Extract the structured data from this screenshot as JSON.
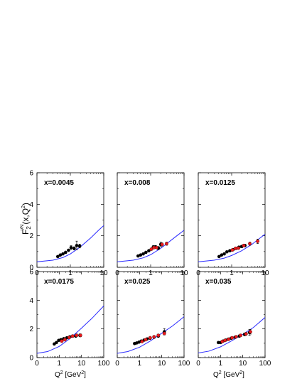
{
  "figure": {
    "ylabel_main": "F",
    "ylabel_sub": "2",
    "ylabel_sup": "νN",
    "ylabel_rest": "(x,Q",
    "ylabel_rest_sup": "2",
    "ylabel_close": ")",
    "xlabel_main": "Q",
    "xlabel_sup": "2",
    "xlabel_unit_open": " [GeV",
    "xlabel_unit_sup": "2",
    "xlabel_unit_close": "]"
  },
  "colors": {
    "curve": "#2a2aff",
    "black_points": "#000000",
    "red_points": "#e8191c"
  },
  "chart_data": [
    {
      "type": "scatter",
      "label": "x=0.0045",
      "ylim": [
        0,
        6
      ],
      "xlim": [
        0,
        10
      ],
      "xscale": "log",
      "xticks": [
        {
          "v": 1,
          "t": "1"
        },
        {
          "v": 10,
          "t": "10"
        }
      ],
      "yticks": [
        {
          "v": 0,
          "t": "0"
        },
        {
          "v": 2,
          "t": "2"
        },
        {
          "v": 4,
          "t": "4"
        },
        {
          "v": 6,
          "t": "6"
        }
      ],
      "curve": [
        [
          0.1,
          0.35
        ],
        [
          0.3,
          0.45
        ],
        [
          0.6,
          0.62
        ],
        [
          1,
          0.85
        ],
        [
          2,
          1.3
        ],
        [
          4,
          1.85
        ],
        [
          7,
          2.35
        ],
        [
          10,
          2.65
        ]
      ],
      "series": [
        {
          "color": "black",
          "points": [
            [
              0.42,
              0.68
            ],
            [
              0.5,
              0.78
            ],
            [
              0.6,
              0.85
            ],
            [
              0.72,
              0.95
            ],
            [
              0.88,
              1.08
            ],
            [
              1.05,
              1.25
            ],
            [
              1.3,
              1.2
            ],
            [
              1.55,
              1.38
            ],
            [
              1.9,
              1.35
            ]
          ],
          "errors": [
            0,
            0,
            0,
            0,
            0,
            0.12,
            0.1,
            0.28,
            0.12
          ]
        }
      ]
    },
    {
      "type": "scatter",
      "label": "x=0.008",
      "ylim": [
        0,
        6
      ],
      "xlim": [
        0,
        10
      ],
      "xscale": "log",
      "xticks": [
        {
          "v": 1,
          "t": "1"
        },
        {
          "v": 10,
          "t": "10"
        }
      ],
      "yticks": [
        {
          "v": 0,
          "t": "0"
        },
        {
          "v": 2,
          "t": "2"
        },
        {
          "v": 4,
          "t": "4"
        },
        {
          "v": 6,
          "t": "6"
        }
      ],
      "curve": [
        [
          0.1,
          0.35
        ],
        [
          0.3,
          0.45
        ],
        [
          0.6,
          0.6
        ],
        [
          1,
          0.8
        ],
        [
          2,
          1.2
        ],
        [
          4,
          1.7
        ],
        [
          7,
          2.1
        ],
        [
          10,
          2.35
        ]
      ],
      "series": [
        {
          "color": "black",
          "points": [
            [
              0.42,
              0.72
            ],
            [
              0.5,
              0.78
            ],
            [
              0.6,
              0.85
            ],
            [
              0.72,
              0.95
            ],
            [
              0.88,
              1.05
            ],
            [
              1.2,
              1.28
            ],
            [
              1.4,
              1.3
            ],
            [
              1.7,
              1.22
            ],
            [
              2.0,
              1.45
            ]
          ],
          "errors": [
            0,
            0,
            0,
            0,
            0,
            0.1,
            0.08,
            0.1,
            0.15
          ]
        },
        {
          "color": "red",
          "points": [
            [
              1.05,
              1.15
            ],
            [
              1.25,
              1.25
            ],
            [
              1.5,
              1.25
            ],
            [
              2.2,
              1.45
            ],
            [
              3.0,
              1.5
            ]
          ],
          "errors": [
            0,
            0,
            0,
            0.1,
            0.1
          ]
        }
      ]
    },
    {
      "type": "scatter",
      "label": "x=0.0125",
      "ylim": [
        0,
        6
      ],
      "xlim": [
        0,
        10
      ],
      "xscale": "log",
      "xticks": [
        {
          "v": 1,
          "t": "1"
        },
        {
          "v": 10,
          "t": "10"
        }
      ],
      "yticks": [
        {
          "v": 0,
          "t": "0"
        },
        {
          "v": 2,
          "t": "2"
        },
        {
          "v": 4,
          "t": "4"
        },
        {
          "v": 6,
          "t": "6"
        }
      ],
      "curve": [
        [
          0.1,
          0.35
        ],
        [
          0.3,
          0.45
        ],
        [
          0.6,
          0.58
        ],
        [
          1,
          0.75
        ],
        [
          2,
          1.05
        ],
        [
          4,
          1.45
        ],
        [
          7,
          1.85
        ],
        [
          10,
          2.1
        ]
      ],
      "series": [
        {
          "color": "black",
          "points": [
            [
              0.42,
              0.68
            ],
            [
              0.5,
              0.78
            ],
            [
              0.6,
              0.85
            ],
            [
              0.72,
              0.98
            ],
            [
              0.88,
              1.05
            ],
            [
              1.1,
              1.12
            ],
            [
              1.35,
              1.2
            ],
            [
              1.65,
              1.28
            ],
            [
              2.0,
              1.32
            ],
            [
              2.5,
              1.38
            ]
          ],
          "errors": [
            0,
            0,
            0,
            0,
            0,
            0,
            0.06,
            0.06,
            0.08,
            0.08
          ]
        },
        {
          "color": "red",
          "points": [
            [
              1.05,
              1.1
            ],
            [
              1.3,
              1.2
            ],
            [
              1.6,
              1.22
            ],
            [
              2.3,
              1.38
            ],
            [
              3.5,
              1.5
            ],
            [
              6.0,
              1.65
            ]
          ],
          "errors": [
            0,
            0,
            0,
            0.08,
            0.1,
            0.14
          ]
        }
      ]
    },
    {
      "type": "scatter",
      "label": "x=0.0175",
      "ylim": [
        0,
        6
      ],
      "xlim": [
        0,
        100
      ],
      "xscale": "log",
      "xticks": [
        {
          "v": 1,
          "t": "1"
        },
        {
          "v": 10,
          "t": "10"
        },
        {
          "v": 100,
          "t": "100"
        }
      ],
      "yticks": [
        {
          "v": 0,
          "t": "0"
        },
        {
          "v": 2,
          "t": "2"
        },
        {
          "v": 4,
          "t": "4"
        },
        {
          "v": 6,
          "t": "6"
        }
      ],
      "curve": [
        [
          0.1,
          0.3
        ],
        [
          0.3,
          0.42
        ],
        [
          1,
          0.78
        ],
        [
          3,
          1.32
        ],
        [
          10,
          2.05
        ],
        [
          30,
          2.75
        ],
        [
          100,
          3.6
        ]
      ],
      "series": [
        {
          "color": "black",
          "points": [
            [
              0.6,
              0.95
            ],
            [
              0.75,
              1.05
            ],
            [
              0.95,
              1.2
            ],
            [
              1.2,
              1.25
            ],
            [
              1.6,
              1.32
            ],
            [
              2.2,
              1.38
            ],
            [
              3.0,
              1.45
            ],
            [
              5.5,
              1.5
            ],
            [
              8.5,
              1.55
            ]
          ],
          "errors": [
            0,
            0,
            0,
            0,
            0,
            0,
            0.06,
            0.08,
            0.1
          ]
        },
        {
          "color": "red",
          "points": [
            [
              1.3,
              1.15
            ],
            [
              1.8,
              1.25
            ],
            [
              2.8,
              1.4
            ],
            [
              4.0,
              1.5
            ],
            [
              6.0,
              1.55
            ],
            [
              9.0,
              1.55
            ]
          ],
          "errors": [
            0,
            0,
            0,
            0.08,
            0.1,
            0.1
          ]
        }
      ]
    },
    {
      "type": "scatter",
      "label": "x=0.025",
      "ylim": [
        0,
        6
      ],
      "xlim": [
        0,
        100
      ],
      "xscale": "log",
      "xticks": [
        {
          "v": 1,
          "t": "1"
        },
        {
          "v": 10,
          "t": "10"
        },
        {
          "v": 100,
          "t": "100"
        }
      ],
      "yticks": [
        {
          "v": 0,
          "t": "0"
        },
        {
          "v": 2,
          "t": "2"
        },
        {
          "v": 4,
          "t": "4"
        },
        {
          "v": 6,
          "t": "6"
        }
      ],
      "curve": [
        [
          0.1,
          0.3
        ],
        [
          0.3,
          0.42
        ],
        [
          1,
          0.72
        ],
        [
          3,
          1.15
        ],
        [
          10,
          1.7
        ],
        [
          30,
          2.2
        ],
        [
          100,
          2.85
        ]
      ],
      "series": [
        {
          "color": "black",
          "points": [
            [
              0.6,
              0.98
            ],
            [
              0.75,
              1.02
            ],
            [
              0.95,
              1.08
            ],
            [
              1.2,
              1.15
            ],
            [
              1.6,
              1.22
            ],
            [
              2.2,
              1.3
            ],
            [
              3.0,
              1.35
            ],
            [
              4.5,
              1.42
            ],
            [
              7.0,
              1.5
            ],
            [
              13.0,
              1.8
            ]
          ],
          "errors": [
            0,
            0,
            0,
            0,
            0,
            0,
            0.05,
            0.06,
            0.08,
            0.22
          ]
        },
        {
          "color": "red",
          "points": [
            [
              1.3,
              1.12
            ],
            [
              1.9,
              1.25
            ],
            [
              3.0,
              1.38
            ],
            [
              4.5,
              1.45
            ],
            [
              7.0,
              1.55
            ],
            [
              13.0,
              1.68
            ]
          ],
          "errors": [
            0,
            0,
            0.08,
            0.08,
            0.08,
            0.1
          ]
        }
      ]
    },
    {
      "type": "scatter",
      "label": "x=0.035",
      "ylim": [
        0,
        6
      ],
      "xlim": [
        0,
        100
      ],
      "xscale": "log",
      "xticks": [
        {
          "v": 1,
          "t": "1"
        },
        {
          "v": 10,
          "t": "10"
        },
        {
          "v": 100,
          "t": "100"
        }
      ],
      "yticks": [
        {
          "v": 0,
          "t": "0"
        },
        {
          "v": 2,
          "t": "2"
        },
        {
          "v": 4,
          "t": "4"
        },
        {
          "v": 6,
          "t": "6"
        }
      ],
      "curve": [
        [
          0.1,
          0.32
        ],
        [
          0.3,
          0.45
        ],
        [
          1,
          0.75
        ],
        [
          3,
          1.15
        ],
        [
          10,
          1.62
        ],
        [
          30,
          2.1
        ],
        [
          100,
          2.8
        ]
      ],
      "series": [
        {
          "color": "black",
          "points": [
            [
              0.8,
              1.05
            ],
            [
              1.0,
              1.05
            ],
            [
              1.3,
              1.15
            ],
            [
              1.7,
              1.22
            ],
            [
              2.2,
              1.28
            ],
            [
              3.0,
              1.35
            ],
            [
              4.5,
              1.42
            ],
            [
              7.0,
              1.5
            ],
            [
              12.0,
              1.62
            ],
            [
              20.0,
              1.75
            ]
          ],
          "errors": [
            0,
            0,
            0,
            0,
            0,
            0,
            0.06,
            0.08,
            0.1,
            0.2
          ]
        },
        {
          "color": "red",
          "points": [
            [
              1.2,
              1.12
            ],
            [
              1.6,
              1.2
            ],
            [
              2.3,
              1.28
            ],
            [
              3.3,
              1.38
            ],
            [
              5.0,
              1.45
            ],
            [
              8.0,
              1.55
            ],
            [
              14.0,
              1.65
            ],
            [
              22.0,
              1.8
            ]
          ],
          "errors": [
            0,
            0,
            0,
            0.06,
            0.06,
            0.08,
            0.1,
            0.16
          ]
        }
      ]
    }
  ]
}
